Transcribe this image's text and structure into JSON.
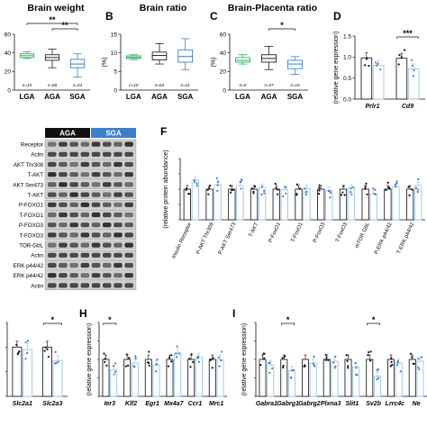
{
  "panel_letters": [
    "B",
    "C",
    "D",
    "F",
    "H",
    "I"
  ],
  "colors": {
    "lga": "#2fb36a",
    "aga": "#222222",
    "sga": "#3c7fcf",
    "light_blue": "#9cc3ee",
    "bar_white": "#ffffff"
  },
  "blot": {
    "group_labels": [
      "AGA",
      "SGA"
    ],
    "rows": [
      "Receptor",
      "Actin",
      "AKT Thr308",
      "T-AKT",
      "AKT Ser473",
      "T-AKT",
      "P-FOXO1",
      "T-FOXO1",
      "P-FOXO3",
      "T-FOXO3",
      "TOR-GbL",
      "Actin",
      "ERK p44/42",
      "ERK p44/42",
      "Actin"
    ]
  },
  "chart_data": [
    {
      "id": "A",
      "type": "box",
      "title": "Brain weight",
      "categories": [
        "LGA",
        "AGA",
        "SGA"
      ],
      "n_labels": [
        "n=10",
        "n=68",
        "n=24"
      ],
      "ylim": [
        0,
        60
      ],
      "yticks": [
        0,
        20,
        40,
        60
      ],
      "ylabel": "",
      "boxes": [
        {
          "min": 34,
          "q1": 35,
          "median": 37,
          "q3": 39,
          "max": 41
        },
        {
          "min": 24,
          "q1": 32,
          "median": 35,
          "q3": 38,
          "max": 44
        },
        {
          "min": 14,
          "q1": 24,
          "median": 28,
          "q3": 33,
          "max": 39
        }
      ],
      "significance": [
        {
          "from": 0,
          "to": 2,
          "label": "**"
        },
        {
          "from": 1,
          "to": 2,
          "label": "**"
        }
      ]
    },
    {
      "id": "B",
      "type": "box",
      "title": "Brain ratio",
      "categories": [
        "LGA",
        "AGA",
        "SGA"
      ],
      "n_labels": [
        "n=10",
        "n=63",
        "n=21"
      ],
      "ylim": [
        0,
        15
      ],
      "yticks": [
        0,
        5,
        10,
        15
      ],
      "ylabel": "(%)",
      "boxes": [
        {
          "min": 8.2,
          "q1": 8.5,
          "median": 8.8,
          "q3": 9.2,
          "max": 9.5
        },
        {
          "min": 7.0,
          "q1": 8.1,
          "median": 9.3,
          "q3": 10.2,
          "max": 12.5
        },
        {
          "min": 5.5,
          "q1": 7.5,
          "median": 9.0,
          "q3": 10.8,
          "max": 13.8
        }
      ],
      "significance": []
    },
    {
      "id": "C",
      "type": "box",
      "title": "Brain-Placenta ratio",
      "categories": [
        "LGA",
        "AGA",
        "SGA"
      ],
      "n_labels": [
        "n=6",
        "n=47",
        "n=16"
      ],
      "ylim": [
        0,
        60
      ],
      "yticks": [
        0,
        20,
        40,
        60
      ],
      "ylabel": "(%)",
      "boxes": [
        {
          "min": 28,
          "q1": 30,
          "median": 32,
          "q3": 35,
          "max": 38
        },
        {
          "min": 22,
          "q1": 30,
          "median": 34,
          "q3": 38,
          "max": 47
        },
        {
          "min": 17,
          "q1": 23,
          "median": 28,
          "q3": 32,
          "max": 36
        }
      ],
      "significance": [
        {
          "from": 1,
          "to": 2,
          "label": "*"
        }
      ]
    },
    {
      "id": "D",
      "type": "bar",
      "ylabel": "(relative gene expression)",
      "categories": [
        "Prlr1",
        "Cd9"
      ],
      "ylim": [
        0,
        1.5
      ],
      "yticks": [
        0.0,
        0.5,
        1.0,
        1.5
      ],
      "series": [
        {
          "values": [
            0.98,
            0.97
          ]
        },
        {
          "values": [
            0.8,
            0.72
          ]
        }
      ],
      "significance": [
        {
          "category": 1,
          "label": "***"
        }
      ]
    },
    {
      "id": "F",
      "type": "bar",
      "ylabel": "(relative protein abundance)",
      "categories": [
        "Insulin Receptor",
        "P-AKT Thr308",
        "P-AKT Ser473",
        "T-AKT",
        "P-FoxO1",
        "T-FoxO1",
        "P-FoxO3",
        "T-FoxO3",
        "mTOR GbL",
        "P-ERK p44/42",
        "T-ERK p44/42"
      ],
      "ylim": [
        0,
        2.0
      ],
      "series": [
        {
          "values": [
            1,
            1,
            1,
            1,
            1,
            1,
            1,
            1,
            1,
            1,
            1
          ]
        },
        {
          "values": [
            1.3,
            1.15,
            1.12,
            1.05,
            0.98,
            1.02,
            0.95,
            1.05,
            0.85,
            1.08,
            1.12
          ]
        }
      ],
      "significance": []
    },
    {
      "id": "G",
      "type": "bar",
      "categories": [
        "Slc2a1",
        "Slc2a3"
      ],
      "ylim": [
        0,
        1.5
      ],
      "series": [
        {
          "values": [
            1.0,
            1.0
          ]
        },
        {
          "values": [
            0.95,
            0.72
          ]
        }
      ],
      "significance": [
        {
          "category": 1,
          "label": "*"
        }
      ]
    },
    {
      "id": "H",
      "type": "bar",
      "ylabel": "(relative gene expression)",
      "categories": [
        "Ier3",
        "Klf2",
        "Egr1",
        "Mx4a7",
        "Ccr1",
        "Mrc1"
      ],
      "ylim": [
        0,
        2.0
      ],
      "series": [
        {
          "values": [
            1,
            1,
            1,
            1,
            1,
            1
          ]
        },
        {
          "values": [
            0.72,
            0.9,
            0.85,
            1.18,
            1.05,
            1.0
          ]
        }
      ],
      "significance": [
        {
          "category": 0,
          "label": "*"
        }
      ]
    },
    {
      "id": "I",
      "type": "bar",
      "ylabel": "(relative gene expression)",
      "categories": [
        "Gabra1",
        "Gabrg1",
        "Gabrg2",
        "Plxna3",
        "Slit1",
        "Sv2b",
        "Lrrc4c",
        "Ne"
      ],
      "ylim": [
        0,
        2.0
      ],
      "series": [
        {
          "values": [
            1,
            1,
            1,
            1,
            1,
            1,
            1,
            1
          ]
        },
        {
          "values": [
            0.85,
            0.7,
            0.9,
            0.95,
            0.8,
            0.55,
            0.9,
            0.95
          ]
        }
      ],
      "significance": [
        {
          "category": 1,
          "label": "*"
        },
        {
          "category": 5,
          "label": "*"
        }
      ]
    }
  ]
}
